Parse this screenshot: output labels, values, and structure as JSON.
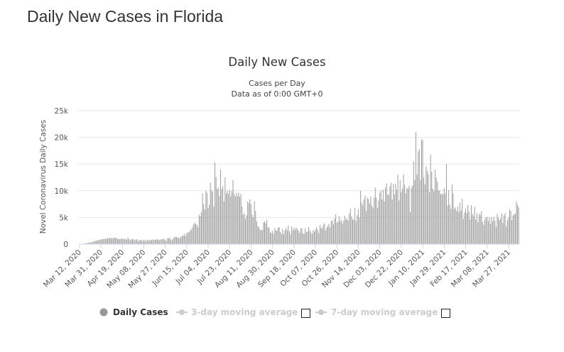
{
  "page": {
    "heading": "Daily New Cases in Florida"
  },
  "chart_data": {
    "type": "bar",
    "title": "Daily New Cases",
    "subtitle_lines": [
      "Cases per Day",
      "Data as of 0:00 GMT+0"
    ],
    "ylabel": "Novel Coronavirus Daily Cases",
    "xlabel": "",
    "ylim": [
      0,
      25000
    ],
    "yticks": [
      {
        "value": 0,
        "label": "0"
      },
      {
        "value": 5000,
        "label": "5k"
      },
      {
        "value": 10000,
        "label": "10k"
      },
      {
        "value": 15000,
        "label": "15k"
      },
      {
        "value": 20000,
        "label": "20k"
      },
      {
        "value": 25000,
        "label": "25k"
      }
    ],
    "start_date": "2020-03-12",
    "xticks": [
      {
        "label": "Mar 12, 2020",
        "day": 0
      },
      {
        "label": "Mar 31, 2020",
        "day": 19
      },
      {
        "label": "Apr 19, 2020",
        "day": 38
      },
      {
        "label": "May 08, 2020",
        "day": 57
      },
      {
        "label": "May 27, 2020",
        "day": 76
      },
      {
        "label": "Jun 15, 2020",
        "day": 95
      },
      {
        "label": "Jul 04, 2020",
        "day": 114
      },
      {
        "label": "Jul 23, 2020",
        "day": 133
      },
      {
        "label": "Aug 11, 2020",
        "day": 152
      },
      {
        "label": "Aug 30, 2020",
        "day": 171
      },
      {
        "label": "Sep 18, 2020",
        "day": 190
      },
      {
        "label": "Oct 07, 2020",
        "day": 209
      },
      {
        "label": "Oct 26, 2020",
        "day": 228
      },
      {
        "label": "Nov 14, 2020",
        "day": 247
      },
      {
        "label": "Dec 03, 2020",
        "day": 266
      },
      {
        "label": "Dec 22, 2020",
        "day": 285
      },
      {
        "label": "Jan 10, 2021",
        "day": 304
      },
      {
        "label": "Jan 29, 2021",
        "day": 323
      },
      {
        "label": "Feb 17, 2021",
        "day": 342
      },
      {
        "label": "Mar 08, 2021",
        "day": 361
      },
      {
        "label": "Mar 27, 2021",
        "day": 380
      }
    ],
    "grid": true,
    "bar_color": "#999999",
    "series": [
      {
        "name": "Daily Cases",
        "values": [
          10,
          20,
          30,
          60,
          90,
          130,
          180,
          220,
          260,
          300,
          350,
          400,
          450,
          500,
          600,
          650,
          700,
          750,
          800,
          850,
          900,
          950,
          1000,
          1000,
          1050,
          1100,
          1100,
          1200,
          1150,
          1050,
          1150,
          1200,
          1200,
          1100,
          1000,
          950,
          950,
          1000,
          1050,
          950,
          1000,
          900,
          850,
          1250,
          900,
          700,
          950,
          900,
          950,
          650,
          900,
          900,
          550,
          700,
          800,
          750,
          600,
          800,
          700,
          500,
          850,
          700,
          650,
          800,
          750,
          900,
          750,
          800,
          950,
          800,
          900,
          700,
          850,
          900,
          950,
          1000,
          750,
          600,
          1150,
          1100,
          1200,
          900,
          700,
          1000,
          1300,
          1400,
          1300,
          1300,
          1050,
          1300,
          1300,
          1600,
          1600,
          1900,
          1500,
          2100,
          2200,
          2200,
          2500,
          2700,
          3100,
          3700,
          4000,
          3800,
          3600,
          3200,
          5500,
          5200,
          6000,
          9500,
          7500,
          6500,
          10000,
          9600,
          6700,
          7400,
          11500,
          10100,
          9800,
          7000,
          15300,
          12600,
          10300,
          10600,
          9000,
          14000,
          10300,
          10800,
          8000,
          12500,
          9500,
          10000,
          9400,
          10200,
          9000,
          10000,
          12000,
          9400,
          8900,
          9600,
          9000,
          9700,
          8900,
          9400,
          7100,
          5500,
          5800,
          4700,
          5400,
          8000,
          7700,
          8400,
          7500,
          5500,
          5000,
          8000,
          6200,
          4300,
          3400,
          3200,
          2700,
          2600,
          2700,
          4100,
          4300,
          3900,
          4600,
          3200,
          3100,
          2200,
          2100,
          2500,
          1900,
          3000,
          2600,
          2500,
          3100,
          3200,
          2300,
          1900,
          2800,
          1900,
          2600,
          3100,
          2600,
          3500,
          2400,
          1800,
          3300,
          2600,
          3100,
          2700,
          3100,
          2800,
          2500,
          2100,
          2900,
          3000,
          2000,
          1900,
          3000,
          2300,
          2300,
          3200,
          2600,
          2200,
          1900,
          2600,
          2300,
          2700,
          3200,
          2700,
          2100,
          3600,
          3100,
          2900,
          3600,
          3900,
          2600,
          3100,
          3400,
          3800,
          3100,
          4300,
          4500,
          3700,
          4800,
          5600,
          4000,
          4200,
          5200,
          4300,
          4600,
          3800,
          4400,
          5300,
          4600,
          4800,
          4400,
          5700,
          6700,
          5200,
          4600,
          4600,
          6800,
          4300,
          5400,
          6500,
          5000,
          10000,
          7800,
          7300,
          8400,
          9100,
          6200,
          8700,
          8400,
          7600,
          8900,
          7200,
          6700,
          8700,
          10600,
          8700,
          6800,
          8200,
          9600,
          10000,
          8400,
          10200,
          8000,
          10600,
          11400,
          9300,
          9200,
          10800,
          11500,
          8400,
          11300,
          9300,
          11300,
          10200,
          13000,
          8200,
          12000,
          9700,
          10400,
          13100,
          11100,
          9500,
          10500,
          10400,
          11000,
          6000,
          10600,
          11000,
          15500,
          12000,
          21000,
          13000,
          17400,
          17800,
          12000,
          19600,
          19500,
          12500,
          11200,
          14600,
          13800,
          13100,
          9700,
          16800,
          13600,
          10400,
          9900,
          14000,
          12500,
          11700,
          10100,
          10000,
          9300,
          9500,
          9300,
          10500,
          9500,
          15000,
          7200,
          10100,
          7400,
          6600,
          11200,
          9500,
          6600,
          6900,
          6200,
          7100,
          6000,
          7800,
          6300,
          8500,
          4700,
          5900,
          6600,
          5800,
          7300,
          6100,
          4600,
          7300,
          5700,
          5300,
          7000,
          4600,
          5800,
          4100,
          5600,
          5500,
          6200,
          4200,
          3600,
          4600,
          5000,
          5100,
          4300,
          5000,
          3800,
          5100,
          4300,
          5100,
          4400,
          3200,
          5700,
          5000,
          4500,
          4800,
          5700,
          4000,
          5400,
          5800,
          3300,
          4500,
          5000,
          6500,
          6200,
          4500,
          5400,
          5600,
          5700,
          8000,
          7400,
          6900
        ]
      }
    ],
    "legend": {
      "placement": "bottom-center",
      "items": [
        {
          "label": "Daily Cases",
          "color": "#333333",
          "marker": "circle",
          "active": true
        },
        {
          "label": "3-day moving average",
          "color": "#cccccc",
          "marker": "line-dot",
          "active": false
        },
        {
          "label": "7-day moving average",
          "color": "#cccccc",
          "marker": "line-dot",
          "active": false
        }
      ],
      "marker_color": "#999999"
    }
  }
}
